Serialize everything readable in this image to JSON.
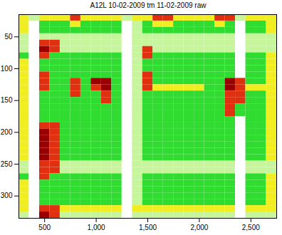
{
  "chart_data": {
    "type": "heatmap",
    "title": "A12L 10-02-2009 tm 11-02-2009 raw",
    "x": [
      300,
      400,
      500,
      600,
      700,
      800,
      900,
      1000,
      1100,
      1200,
      1300,
      1400,
      1500,
      1600,
      1700,
      1800,
      1900,
      2000,
      2100,
      2200,
      2300,
      2400,
      2500,
      2600,
      2700
    ],
    "y": [
      20,
      30,
      40,
      50,
      60,
      70,
      80,
      90,
      100,
      110,
      120,
      130,
      140,
      150,
      160,
      170,
      180,
      190,
      200,
      210,
      220,
      230,
      240,
      250,
      260,
      270,
      280,
      290,
      300,
      310,
      320,
      330
    ],
    "values": [
      [
        3,
        1,
        3,
        3,
        3,
        4,
        3,
        3,
        3,
        3,
        1,
        3,
        3,
        4,
        4,
        3,
        3,
        3,
        3,
        4,
        4,
        1,
        3,
        3,
        3
      ],
      [
        3,
        0,
        2,
        2,
        2,
        3,
        2,
        2,
        2,
        2,
        0,
        1,
        2,
        3,
        3,
        2,
        2,
        2,
        2,
        3,
        2,
        0,
        2,
        2,
        3
      ],
      [
        3,
        0,
        2,
        2,
        2,
        2,
        2,
        2,
        2,
        2,
        0,
        1,
        2,
        2,
        2,
        2,
        2,
        2,
        2,
        2,
        2,
        0,
        2,
        2,
        3
      ],
      [
        1,
        0,
        1,
        1,
        1,
        1,
        1,
        1,
        1,
        1,
        0,
        1,
        1,
        1,
        1,
        1,
        1,
        1,
        1,
        1,
        1,
        0,
        1,
        1,
        1
      ],
      [
        1,
        0,
        4,
        4,
        1,
        1,
        1,
        1,
        1,
        1,
        0,
        1,
        1,
        1,
        1,
        1,
        1,
        1,
        1,
        1,
        1,
        0,
        1,
        1,
        1
      ],
      [
        1,
        0,
        5,
        4,
        1,
        1,
        1,
        1,
        1,
        1,
        0,
        1,
        4,
        1,
        1,
        1,
        1,
        1,
        1,
        1,
        1,
        0,
        1,
        1,
        1
      ],
      [
        2,
        0,
        4,
        2,
        2,
        2,
        2,
        2,
        2,
        2,
        0,
        1,
        4,
        2,
        2,
        2,
        2,
        2,
        2,
        2,
        2,
        0,
        2,
        2,
        3
      ],
      [
        3,
        0,
        2,
        2,
        2,
        2,
        2,
        2,
        2,
        2,
        0,
        1,
        2,
        2,
        2,
        2,
        2,
        2,
        2,
        2,
        2,
        0,
        2,
        2,
        3
      ],
      [
        3,
        0,
        2,
        2,
        2,
        2,
        2,
        2,
        2,
        2,
        0,
        1,
        2,
        2,
        2,
        2,
        2,
        2,
        2,
        2,
        2,
        0,
        2,
        2,
        3
      ],
      [
        3,
        0,
        4,
        2,
        2,
        2,
        2,
        2,
        2,
        2,
        0,
        1,
        4,
        2,
        2,
        2,
        2,
        2,
        2,
        2,
        2,
        0,
        2,
        2,
        3
      ],
      [
        3,
        0,
        4,
        2,
        2,
        4,
        2,
        5,
        5,
        2,
        0,
        1,
        4,
        2,
        2,
        2,
        2,
        2,
        2,
        2,
        5,
        4,
        2,
        2,
        3
      ],
      [
        3,
        0,
        4,
        2,
        2,
        4,
        2,
        4,
        5,
        2,
        0,
        1,
        4,
        3,
        3,
        3,
        3,
        3,
        2,
        2,
        5,
        4,
        3,
        3,
        3
      ],
      [
        3,
        0,
        2,
        2,
        2,
        4,
        2,
        2,
        4,
        2,
        0,
        1,
        2,
        2,
        2,
        2,
        2,
        2,
        2,
        2,
        4,
        4,
        2,
        2,
        3
      ],
      [
        3,
        0,
        2,
        2,
        2,
        2,
        2,
        2,
        4,
        2,
        0,
        1,
        2,
        2,
        2,
        2,
        2,
        2,
        2,
        2,
        4,
        4,
        2,
        2,
        3
      ],
      [
        3,
        0,
        2,
        2,
        2,
        2,
        2,
        2,
        2,
        2,
        0,
        1,
        2,
        2,
        2,
        2,
        2,
        2,
        2,
        2,
        4,
        2,
        2,
        2,
        3
      ],
      [
        3,
        0,
        2,
        2,
        2,
        2,
        2,
        2,
        2,
        2,
        0,
        1,
        2,
        2,
        2,
        2,
        2,
        2,
        2,
        2,
        4,
        2,
        2,
        2,
        3
      ],
      [
        3,
        0,
        2,
        2,
        2,
        2,
        2,
        2,
        2,
        2,
        0,
        1,
        2,
        2,
        2,
        2,
        2,
        2,
        2,
        2,
        2,
        0,
        2,
        2,
        3
      ],
      [
        3,
        0,
        4,
        4,
        2,
        2,
        2,
        2,
        2,
        2,
        0,
        1,
        2,
        2,
        2,
        2,
        2,
        2,
        2,
        2,
        2,
        0,
        2,
        2,
        3
      ],
      [
        3,
        0,
        5,
        4,
        2,
        2,
        2,
        2,
        2,
        2,
        0,
        1,
        2,
        2,
        2,
        2,
        2,
        2,
        2,
        2,
        2,
        0,
        2,
        2,
        3
      ],
      [
        3,
        0,
        5,
        4,
        2,
        2,
        2,
        2,
        2,
        2,
        0,
        1,
        2,
        2,
        2,
        2,
        2,
        2,
        2,
        2,
        2,
        0,
        2,
        2,
        3
      ],
      [
        3,
        0,
        5,
        4,
        2,
        2,
        2,
        2,
        2,
        2,
        0,
        1,
        2,
        2,
        2,
        2,
        2,
        2,
        2,
        2,
        2,
        0,
        2,
        2,
        3
      ],
      [
        3,
        0,
        5,
        4,
        2,
        2,
        2,
        2,
        2,
        2,
        0,
        1,
        2,
        2,
        2,
        2,
        2,
        2,
        2,
        2,
        2,
        0,
        2,
        2,
        3
      ],
      [
        3,
        0,
        5,
        4,
        2,
        2,
        2,
        2,
        2,
        2,
        0,
        1,
        2,
        2,
        2,
        2,
        2,
        2,
        2,
        2,
        2,
        0,
        2,
        2,
        3
      ],
      [
        1,
        0,
        4,
        4,
        1,
        1,
        1,
        1,
        1,
        1,
        0,
        1,
        1,
        1,
        1,
        1,
        1,
        1,
        1,
        1,
        1,
        0,
        1,
        1,
        1
      ],
      [
        1,
        0,
        4,
        4,
        1,
        1,
        1,
        1,
        1,
        1,
        0,
        1,
        1,
        1,
        1,
        1,
        1,
        1,
        1,
        1,
        1,
        0,
        1,
        1,
        1
      ],
      [
        2,
        0,
        4,
        2,
        2,
        2,
        2,
        2,
        2,
        2,
        0,
        1,
        2,
        2,
        2,
        2,
        2,
        2,
        2,
        2,
        2,
        0,
        2,
        2,
        3
      ],
      [
        3,
        0,
        2,
        2,
        2,
        2,
        2,
        2,
        2,
        2,
        0,
        1,
        2,
        2,
        2,
        2,
        2,
        2,
        2,
        2,
        2,
        0,
        2,
        2,
        3
      ],
      [
        3,
        0,
        2,
        2,
        2,
        2,
        2,
        2,
        2,
        2,
        0,
        1,
        2,
        2,
        2,
        2,
        2,
        2,
        2,
        2,
        2,
        0,
        2,
        2,
        3
      ],
      [
        3,
        0,
        2,
        2,
        2,
        2,
        2,
        2,
        2,
        2,
        0,
        1,
        2,
        2,
        2,
        2,
        2,
        2,
        2,
        2,
        2,
        0,
        2,
        2,
        3
      ],
      [
        3,
        0,
        2,
        2,
        2,
        2,
        2,
        2,
        2,
        2,
        0,
        1,
        2,
        2,
        2,
        2,
        2,
        2,
        2,
        2,
        2,
        0,
        2,
        2,
        3
      ],
      [
        3,
        0,
        4,
        4,
        3,
        3,
        3,
        3,
        3,
        3,
        0,
        3,
        3,
        3,
        3,
        3,
        3,
        3,
        3,
        3,
        3,
        0,
        3,
        3,
        3
      ],
      [
        1,
        0,
        5,
        4,
        1,
        1,
        1,
        1,
        1,
        1,
        0,
        1,
        1,
        1,
        1,
        1,
        1,
        1,
        1,
        1,
        1,
        0,
        1,
        1,
        1
      ]
    ],
    "xlim": [
      250,
      2750
    ],
    "ylim": [
      15,
      335
    ],
    "xticks": [
      500,
      1000,
      1500,
      2000,
      2500
    ],
    "yticks": [
      50,
      100,
      150,
      200,
      250,
      300
    ]
  }
}
